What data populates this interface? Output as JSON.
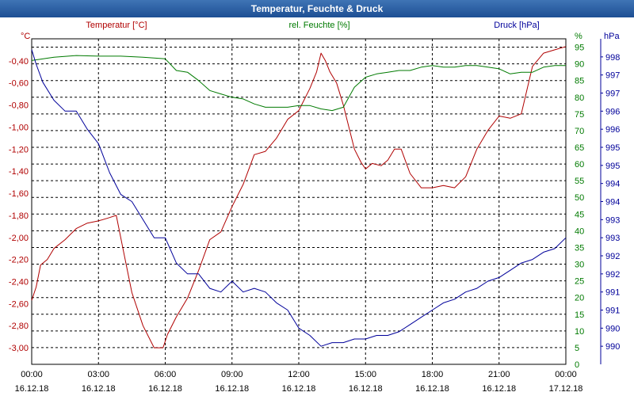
{
  "window": {
    "title": "Temperatur, Feuchte & Druck"
  },
  "chart_data": {
    "type": "line",
    "title": "Temperatur, Feuchte & Druck",
    "colors": {
      "temperature": "#b00000",
      "humidity": "#007a00",
      "pressure": "#00009a",
      "grid": "#000000"
    },
    "x_ticks": [
      {
        "time": "00:00",
        "date": "16.12.18"
      },
      {
        "time": "03:00",
        "date": "16.12.18"
      },
      {
        "time": "06:00",
        "date": "16.12.18"
      },
      {
        "time": "09:00",
        "date": "16.12.18"
      },
      {
        "time": "12:00",
        "date": "16.12.18"
      },
      {
        "time": "15:00",
        "date": "16.12.18"
      },
      {
        "time": "18:00",
        "date": "16.12.18"
      },
      {
        "time": "21:00",
        "date": "16.12.18"
      },
      {
        "time": "00:00",
        "date": "17.12.18"
      }
    ],
    "x_range_hours": [
      0,
      24
    ],
    "axes": {
      "temperature": {
        "label": "Temperatur [°C]",
        "unit": "°C",
        "range": [
          -3.15,
          -0.2
        ],
        "ticks": [
          "-0,40",
          "-0,60",
          "-0,80",
          "-1,00",
          "-1,20",
          "-1,40",
          "-1,60",
          "-1,80",
          "-2,00",
          "-2,20",
          "-2,40",
          "-2,60",
          "-2,80",
          "-3,00"
        ],
        "tick_values": [
          -0.4,
          -0.6,
          -0.8,
          -1.0,
          -1.2,
          -1.4,
          -1.6,
          -1.8,
          -2.0,
          -2.2,
          -2.4,
          -2.6,
          -2.8,
          -3.0
        ]
      },
      "humidity": {
        "label": "rel. Feuchte [%]",
        "unit": "%",
        "range": [
          0,
          97.5
        ],
        "ticks": [
          "95",
          "90",
          "85",
          "80",
          "75",
          "70",
          "65",
          "60",
          "55",
          "50",
          "45",
          "40",
          "35",
          "30",
          "25",
          "20",
          "15",
          "10",
          "5",
          "0"
        ],
        "tick_values": [
          95,
          90,
          85,
          80,
          75,
          70,
          65,
          60,
          55,
          50,
          45,
          40,
          35,
          30,
          25,
          20,
          15,
          10,
          5,
          0
        ]
      },
      "pressure": {
        "label": "Druck [hPa]",
        "unit": "hPa",
        "range": [
          989.5,
          998.5
        ],
        "ticks": [
          "998",
          "997",
          "997",
          "996",
          "996",
          "995",
          "995",
          "994",
          "994",
          "993",
          "993",
          "992",
          "992",
          "991",
          "991",
          "990",
          "990"
        ],
        "tick_values": [
          998.0,
          997.5,
          997.0,
          996.5,
          996.0,
          995.5,
          995.0,
          994.5,
          994.0,
          993.5,
          993.0,
          992.5,
          992.0,
          991.5,
          991.0,
          990.5,
          990.0
        ]
      }
    },
    "series": [
      {
        "name": "Temperatur [°C]",
        "axis": "temperature",
        "x": [
          0,
          0.2,
          0.4,
          0.7,
          1.0,
          1.5,
          2.0,
          2.5,
          3.0,
          3.5,
          3.8,
          4.1,
          4.5,
          5.0,
          5.5,
          5.9,
          6.1,
          6.5,
          7.0,
          7.5,
          8.0,
          8.5,
          9.0,
          9.5,
          10.0,
          10.5,
          11.0,
          11.5,
          12.0,
          12.5,
          12.8,
          13.0,
          13.2,
          13.4,
          13.7,
          14.0,
          14.5,
          14.8,
          15.0,
          15.3,
          15.7,
          16.0,
          16.3,
          16.6,
          17.0,
          17.5,
          18.0,
          18.5,
          19.0,
          19.5,
          20.0,
          20.5,
          21.0,
          21.5,
          22.0,
          22.5,
          23.0,
          23.5,
          24.0
        ],
        "values": [
          -2.57,
          -2.45,
          -2.25,
          -2.2,
          -2.1,
          -2.02,
          -1.92,
          -1.87,
          -1.85,
          -1.82,
          -1.8,
          -2.1,
          -2.5,
          -2.8,
          -3.0,
          -3.0,
          -2.88,
          -2.72,
          -2.55,
          -2.3,
          -2.02,
          -1.95,
          -1.72,
          -1.52,
          -1.25,
          -1.22,
          -1.1,
          -0.93,
          -0.85,
          -0.65,
          -0.5,
          -0.33,
          -0.4,
          -0.5,
          -0.6,
          -0.8,
          -1.2,
          -1.32,
          -1.38,
          -1.33,
          -1.35,
          -1.3,
          -1.2,
          -1.2,
          -1.42,
          -1.55,
          -1.55,
          -1.53,
          -1.55,
          -1.45,
          -1.2,
          -1.03,
          -0.9,
          -0.92,
          -0.88,
          -0.45,
          -0.33,
          -0.3,
          -0.27
        ]
      },
      {
        "name": "rel. Feuchte [%]",
        "axis": "humidity",
        "x": [
          0,
          1,
          2,
          3,
          4,
          5,
          6,
          6.5,
          7,
          7.5,
          8,
          8.5,
          9,
          9.5,
          10,
          10.5,
          11,
          11.5,
          12,
          12.5,
          13,
          13.5,
          14,
          14.5,
          15,
          15.5,
          16,
          16.5,
          17,
          17.5,
          18,
          18.5,
          19,
          19.5,
          20,
          20.5,
          21,
          21.5,
          22,
          22.5,
          23,
          23.5,
          24
        ],
        "values": [
          91.0,
          92.0,
          92.5,
          92.3,
          92.3,
          92.0,
          91.5,
          88.0,
          87.5,
          85.0,
          82.0,
          81.0,
          80.0,
          79.5,
          78.0,
          77.0,
          77.0,
          77.0,
          77.5,
          77.5,
          76.5,
          76.0,
          77.0,
          83.0,
          86.0,
          87.0,
          87.5,
          88.0,
          88.0,
          89.0,
          89.5,
          89.0,
          89.0,
          89.5,
          89.5,
          89.0,
          88.5,
          87.0,
          87.5,
          87.5,
          89.0,
          89.5,
          89.5
        ]
      },
      {
        "name": "Druck [hPa]",
        "axis": "pressure",
        "x": [
          0,
          0.2,
          0.5,
          1.0,
          1.5,
          2.0,
          2.5,
          3.0,
          3.5,
          4.0,
          4.5,
          5.0,
          5.5,
          6.0,
          6.5,
          7.0,
          7.5,
          8.0,
          8.5,
          9.0,
          9.5,
          10.0,
          10.5,
          11.0,
          11.5,
          12.0,
          12.5,
          13.0,
          13.5,
          14.0,
          14.5,
          15.0,
          15.5,
          16.0,
          16.5,
          17.0,
          17.5,
          18.0,
          18.5,
          19.0,
          19.5,
          20.0,
          20.5,
          21.0,
          21.5,
          22.0,
          22.5,
          23.0,
          23.5,
          24.0
        ],
        "values": [
          998.2,
          997.8,
          997.3,
          996.8,
          996.5,
          996.5,
          996.0,
          995.6,
          994.8,
          994.2,
          994.0,
          993.5,
          993.0,
          993.0,
          992.3,
          992.0,
          992.0,
          991.6,
          991.5,
          991.8,
          991.5,
          991.6,
          991.5,
          991.2,
          991.0,
          990.5,
          990.3,
          990.0,
          990.1,
          990.1,
          990.2,
          990.2,
          990.3,
          990.3,
          990.4,
          990.6,
          990.8,
          991.0,
          991.2,
          991.3,
          991.5,
          991.6,
          991.8,
          991.9,
          992.1,
          992.3,
          992.4,
          992.6,
          992.7,
          993.0
        ]
      }
    ]
  }
}
